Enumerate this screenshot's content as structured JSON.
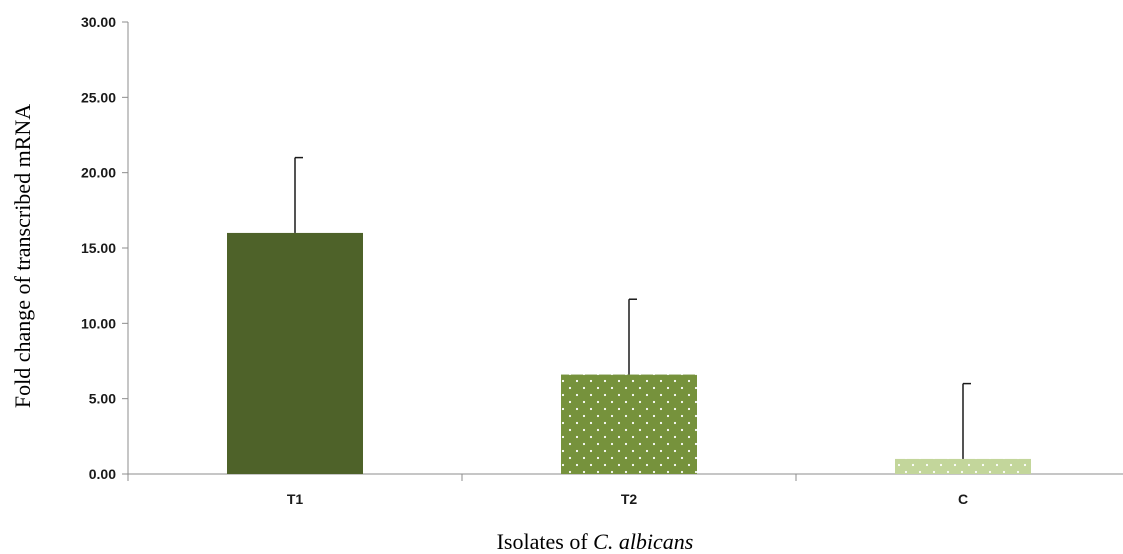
{
  "chart_data": {
    "type": "bar",
    "categories": [
      "T1",
      "T2",
      "C"
    ],
    "values": [
      16.0,
      6.6,
      1.0
    ],
    "error_upper": [
      5.0,
      5.0,
      5.0
    ],
    "ylim": [
      0,
      30
    ],
    "yticks": [
      "0.00",
      "5.00",
      "10.00",
      "15.00",
      "20.00",
      "25.00",
      "30.00"
    ],
    "ytick_values": [
      0,
      5,
      10,
      15,
      20,
      25,
      30
    ],
    "ylabel": "Fold change of transcribed mRNA",
    "xlabel_prefix": "Isolates of ",
    "xlabel_italic": "C. albicans",
    "grid": false,
    "legend": "none",
    "colors": [
      "#4e6229",
      "#76923c",
      "#c3d69b"
    ],
    "patterns": [
      "solid",
      "dots",
      "dots"
    ]
  }
}
